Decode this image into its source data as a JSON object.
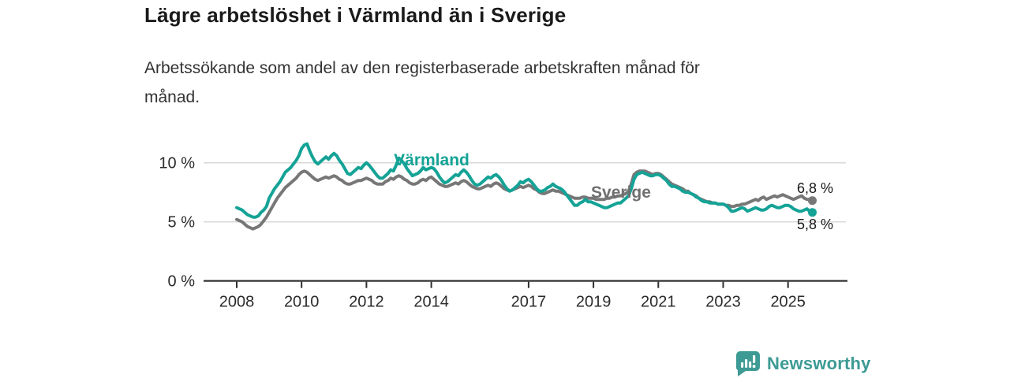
{
  "header": {
    "title": "Lägre arbetslöshet i Värmland än i Sverige",
    "subtitle_line1": "Arbetssökande som andel av den registerbaserade arbetskraften månad för",
    "subtitle_line2": "månad."
  },
  "branding": {
    "wordmark": "Newsworthy",
    "icon": "bar-chart-speech-bubble-icon",
    "color": "#3d9a94"
  },
  "colors": {
    "varmland_line": "#14a396",
    "sverige_line": "#777777",
    "gridline": "#d9d9d9",
    "axis": "#2f2f2f",
    "tick_text": "#2b2b2b",
    "title_text": "#1a1a1a"
  },
  "chart_data": {
    "type": "line",
    "title": "Lägre arbetslöshet i Värmland än i Sverige",
    "xlabel": "",
    "ylabel": "Arbetssökande som andel av den registerbaserade arbetskraften",
    "unit": "%",
    "x_start_year": 2008,
    "x_step_months": 1,
    "xlim": [
      2007.0,
      2026.8
    ],
    "ylim": [
      0,
      12.3
    ],
    "grid": "horizontal",
    "yticks": [
      {
        "value": 0,
        "label": "0 %"
      },
      {
        "value": 5,
        "label": "5 %"
      },
      {
        "value": 10,
        "label": "10 %"
      }
    ],
    "xticks": [
      {
        "value": 2008,
        "label": "2008"
      },
      {
        "value": 2010,
        "label": "2010"
      },
      {
        "value": 2012,
        "label": "2012"
      },
      {
        "value": 2014,
        "label": "2014"
      },
      {
        "value": 2017,
        "label": "2017"
      },
      {
        "value": 2019,
        "label": "2019"
      },
      {
        "value": 2021,
        "label": "2021"
      },
      {
        "value": 2023,
        "label": "2023"
      },
      {
        "value": 2025,
        "label": "2025"
      }
    ],
    "series": [
      {
        "name": "Värmland",
        "color": "#14a396",
        "end_value": 5.8,
        "end_label": "5,8 %",
        "values": [
          6.2,
          6.1,
          6.0,
          5.8,
          5.6,
          5.5,
          5.4,
          5.4,
          5.5,
          5.8,
          6.0,
          6.3,
          7.0,
          7.4,
          7.8,
          8.1,
          8.4,
          8.8,
          9.2,
          9.4,
          9.6,
          9.9,
          10.2,
          10.6,
          11.2,
          11.5,
          11.6,
          11.0,
          10.5,
          10.1,
          9.9,
          10.1,
          10.3,
          10.5,
          10.3,
          10.6,
          10.8,
          10.6,
          10.2,
          9.9,
          9.5,
          9.1,
          9.0,
          9.2,
          9.4,
          9.6,
          9.5,
          9.8,
          10.0,
          9.8,
          9.5,
          9.2,
          8.9,
          8.7,
          8.7,
          8.9,
          9.1,
          9.4,
          9.3,
          9.8,
          10.4,
          10.2,
          9.9,
          9.5,
          9.2,
          8.9,
          9.0,
          9.1,
          9.3,
          9.6,
          9.4,
          9.5,
          9.6,
          9.5,
          9.2,
          8.8,
          8.5,
          8.3,
          8.4,
          8.6,
          8.8,
          9.0,
          8.9,
          9.2,
          9.4,
          9.2,
          8.9,
          8.5,
          8.2,
          8.1,
          8.2,
          8.4,
          8.6,
          8.8,
          8.7,
          8.9,
          9.0,
          8.8,
          8.5,
          8.1,
          7.8,
          7.6,
          7.7,
          7.9,
          8.1,
          8.4,
          8.3,
          8.5,
          8.6,
          8.4,
          8.1,
          7.8,
          7.6,
          7.6,
          7.7,
          7.9,
          8.0,
          8.2,
          8.0,
          7.9,
          7.8,
          7.6,
          7.3,
          7.0,
          6.7,
          6.4,
          6.4,
          6.6,
          6.7,
          6.9,
          6.7,
          6.7,
          6.6,
          6.5,
          6.4,
          6.3,
          6.2,
          6.2,
          6.3,
          6.4,
          6.5,
          6.6,
          6.6,
          6.8,
          7.0,
          7.2,
          7.8,
          8.6,
          9.0,
          9.1,
          9.2,
          9.1,
          9.0,
          8.9,
          8.9,
          9.0,
          9.0,
          8.9,
          8.7,
          8.5,
          8.2,
          8.0,
          8.0,
          7.9,
          7.8,
          7.6,
          7.5,
          7.5,
          7.4,
          7.3,
          7.1,
          7.0,
          6.8,
          6.7,
          6.7,
          6.6,
          6.6,
          6.6,
          6.5,
          6.5,
          6.5,
          6.4,
          6.2,
          5.9,
          5.9,
          6.0,
          6.1,
          6.2,
          6.1,
          5.9,
          6.0,
          6.1,
          6.2,
          6.1,
          6.0,
          6.0,
          6.1,
          6.3,
          6.4,
          6.3,
          6.2,
          6.2,
          6.3,
          6.4,
          6.4,
          6.3,
          6.1,
          6.0,
          5.9,
          5.9,
          6.0,
          6.1,
          5.9,
          5.8
        ]
      },
      {
        "name": "Sverige",
        "color": "#777777",
        "end_value": 6.8,
        "end_label": "6,8 %",
        "values": [
          5.2,
          5.1,
          5.0,
          4.8,
          4.6,
          4.5,
          4.4,
          4.5,
          4.6,
          4.8,
          5.1,
          5.4,
          5.8,
          6.2,
          6.6,
          7.0,
          7.3,
          7.6,
          7.9,
          8.1,
          8.3,
          8.5,
          8.7,
          9.0,
          9.2,
          9.3,
          9.2,
          9.0,
          8.8,
          8.6,
          8.5,
          8.6,
          8.7,
          8.8,
          8.7,
          8.8,
          8.9,
          8.8,
          8.6,
          8.5,
          8.3,
          8.2,
          8.2,
          8.3,
          8.4,
          8.5,
          8.5,
          8.6,
          8.7,
          8.6,
          8.5,
          8.3,
          8.2,
          8.2,
          8.2,
          8.4,
          8.5,
          8.7,
          8.6,
          8.8,
          8.9,
          8.8,
          8.6,
          8.5,
          8.3,
          8.2,
          8.2,
          8.3,
          8.5,
          8.6,
          8.5,
          8.7,
          8.8,
          8.6,
          8.4,
          8.2,
          8.1,
          8.0,
          8.0,
          8.1,
          8.2,
          8.3,
          8.2,
          8.4,
          8.5,
          8.4,
          8.2,
          8.0,
          7.9,
          7.8,
          7.8,
          7.9,
          8.0,
          8.1,
          8.0,
          8.2,
          8.3,
          8.2,
          8.0,
          7.8,
          7.7,
          7.6,
          7.7,
          7.8,
          7.9,
          8.0,
          7.9,
          8.0,
          8.1,
          8.0,
          7.8,
          7.7,
          7.5,
          7.4,
          7.4,
          7.5,
          7.6,
          7.7,
          7.6,
          7.6,
          7.5,
          7.4,
          7.3,
          7.2,
          7.1,
          7.0,
          7.0,
          7.0,
          7.1,
          7.1,
          7.0,
          7.0,
          7.0,
          6.9,
          6.9,
          6.9,
          6.9,
          7.0,
          7.0,
          7.1,
          7.1,
          7.2,
          7.2,
          7.3,
          7.4,
          7.6,
          8.2,
          9.0,
          9.2,
          9.3,
          9.3,
          9.3,
          9.2,
          9.1,
          9.0,
          9.1,
          9.1,
          9.0,
          8.8,
          8.6,
          8.4,
          8.2,
          8.1,
          8.0,
          7.9,
          7.8,
          7.6,
          7.6,
          7.4,
          7.3,
          7.2,
          7.0,
          6.9,
          6.8,
          6.7,
          6.7,
          6.6,
          6.6,
          6.5,
          6.5,
          6.5,
          6.4,
          6.4,
          6.3,
          6.3,
          6.4,
          6.4,
          6.5,
          6.5,
          6.6,
          6.7,
          6.8,
          6.9,
          6.8,
          7.0,
          7.1,
          6.9,
          7.0,
          7.1,
          7.2,
          7.1,
          7.2,
          7.3,
          7.2,
          7.1,
          7.0,
          6.9,
          7.0,
          7.1,
          7.2,
          7.0,
          6.9,
          6.9,
          6.8
        ]
      }
    ]
  }
}
